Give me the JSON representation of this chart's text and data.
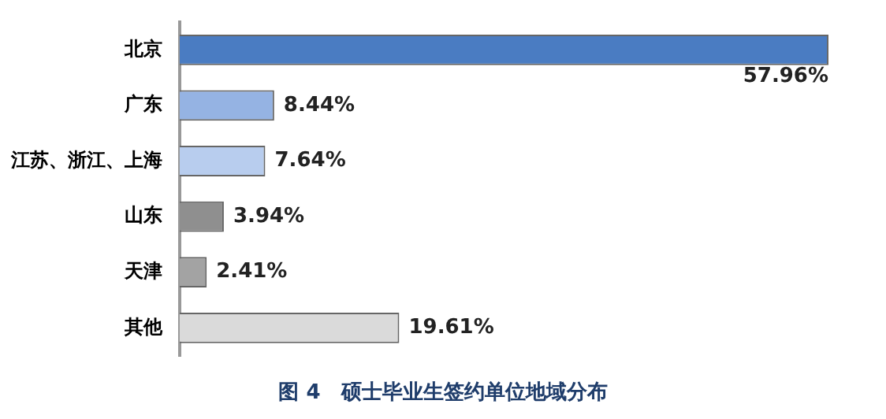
{
  "chart_data": {
    "type": "bar",
    "orientation": "horizontal",
    "title": "图 4　硕士毕业生签约单位地域分布",
    "categories": [
      "北京",
      "广东",
      "江苏、浙江、上海",
      "山东",
      "天津",
      "其他"
    ],
    "values": [
      57.96,
      8.44,
      7.64,
      3.94,
      2.41,
      19.61
    ],
    "colors": [
      "#4a7cc2",
      "#95b3e3",
      "#b8cdee",
      "#8f8f8f",
      "#a3a3a3",
      "#dadada"
    ],
    "value_labels": [
      "57.96%",
      "8.44%",
      "7.64%",
      "3.94%",
      "2.41%",
      "19.61%"
    ],
    "legend": false
  }
}
